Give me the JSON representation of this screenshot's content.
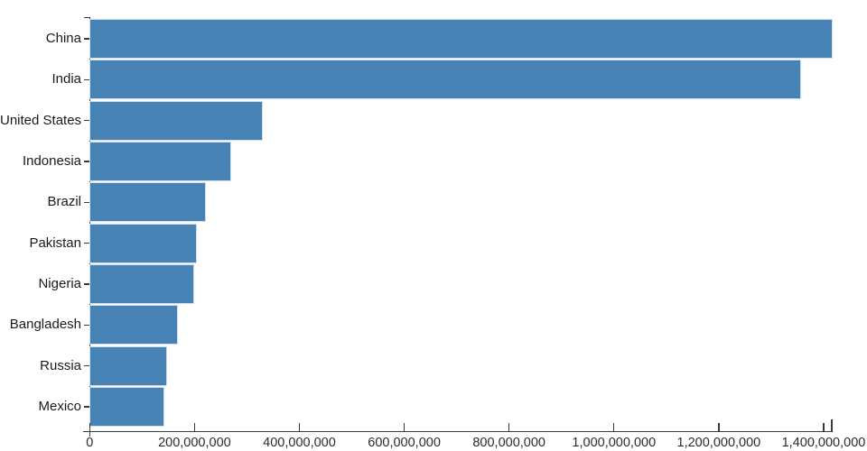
{
  "chart_data": {
    "type": "bar",
    "orientation": "horizontal",
    "title": "",
    "xlabel": "",
    "ylabel": "",
    "categories": [
      "China",
      "India",
      "United States",
      "Indonesia",
      "Brazil",
      "Pakistan",
      "Nigeria",
      "Bangladesh",
      "Russia",
      "Mexico"
    ],
    "values": [
      1415000000,
      1354000000,
      327000000,
      267000000,
      219000000,
      201000000,
      196000000,
      166000000,
      144000000,
      139000000
    ],
    "xlim": [
      0,
      1415000000
    ],
    "x_ticks": [
      {
        "value": 0,
        "label": "0"
      },
      {
        "value": 200000000,
        "label": "200,000,000"
      },
      {
        "value": 400000000,
        "label": "400,000,000"
      },
      {
        "value": 600000000,
        "label": "600,000,000"
      },
      {
        "value": 800000000,
        "label": "800,000,000"
      },
      {
        "value": 1000000000,
        "label": "1,000,000,000"
      },
      {
        "value": 1200000000,
        "label": "1,200,000,000"
      },
      {
        "value": 1400000000,
        "label": "1,400,000,000"
      }
    ],
    "grid": false,
    "legend": false,
    "colors": {
      "bar": "#4682b4",
      "bar_outline": "#cfe0ee",
      "axis": "#3a3a3a",
      "category_text": "#1a1a1a",
      "tick_text": "#2b2b2b",
      "background": "#ffffff"
    }
  }
}
